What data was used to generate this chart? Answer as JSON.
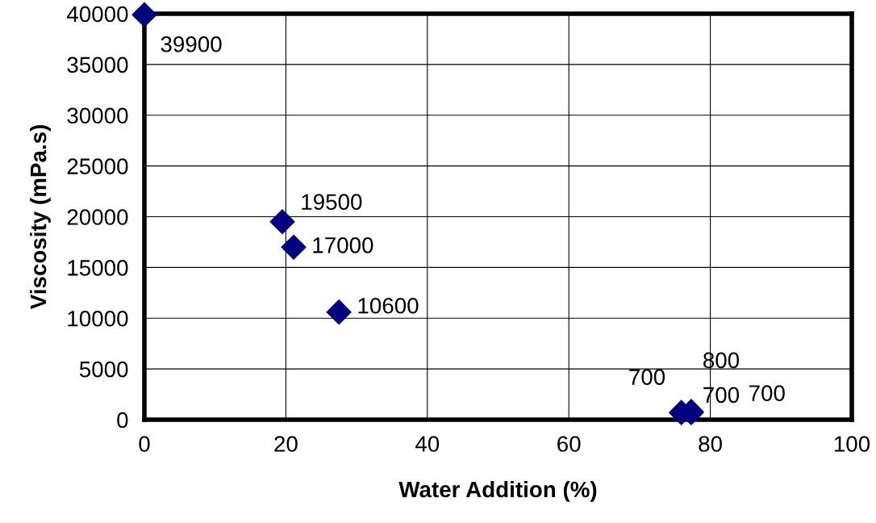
{
  "chart_data": {
    "type": "scatter",
    "xlabel": "Water Addition (%)",
    "ylabel": "Viscosity (mPa.s)",
    "x": [
      0,
      19.5,
      21.1,
      27.5,
      75.9,
      77.3,
      77.3
    ],
    "series": [
      {
        "color": "#000080",
        "values": [
          39900,
          19500,
          17000,
          10600,
          700,
          800,
          700
        ]
      }
    ],
    "annotations": [
      "700"
    ],
    "xlim": [
      0,
      100
    ],
    "xticks": [
      0,
      20,
      40,
      60,
      80,
      100
    ],
    "ylim": [
      0,
      40000
    ],
    "yticks": [
      0,
      5000,
      10000,
      15000,
      20000,
      25000,
      30000,
      35000,
      40000
    ],
    "grid": true,
    "marker": "diamond",
    "data_labels": true
  }
}
